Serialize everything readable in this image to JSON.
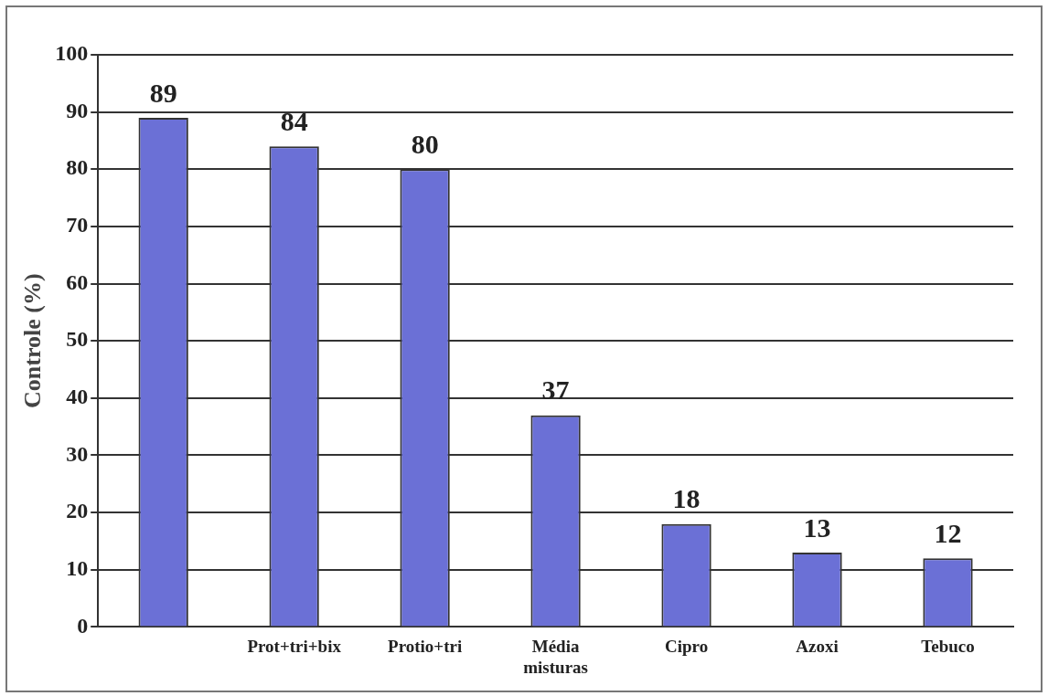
{
  "chart_data": {
    "type": "bar",
    "ylabel": "Controle (%)",
    "categories": [
      null,
      "Prot+tri+bix",
      "Protio+tri",
      "Média misturas",
      "Cipro",
      "Azoxi",
      "Tebuco"
    ],
    "values": [
      89,
      84,
      80,
      37,
      18,
      13,
      12
    ],
    "color": "#6b70d6",
    "ylim": [
      0,
      100
    ],
    "yticks": [
      0,
      10,
      20,
      30,
      40,
      50,
      60,
      70,
      80,
      90,
      100
    ],
    "grid": "y",
    "data_labels": true,
    "legend": false
  }
}
